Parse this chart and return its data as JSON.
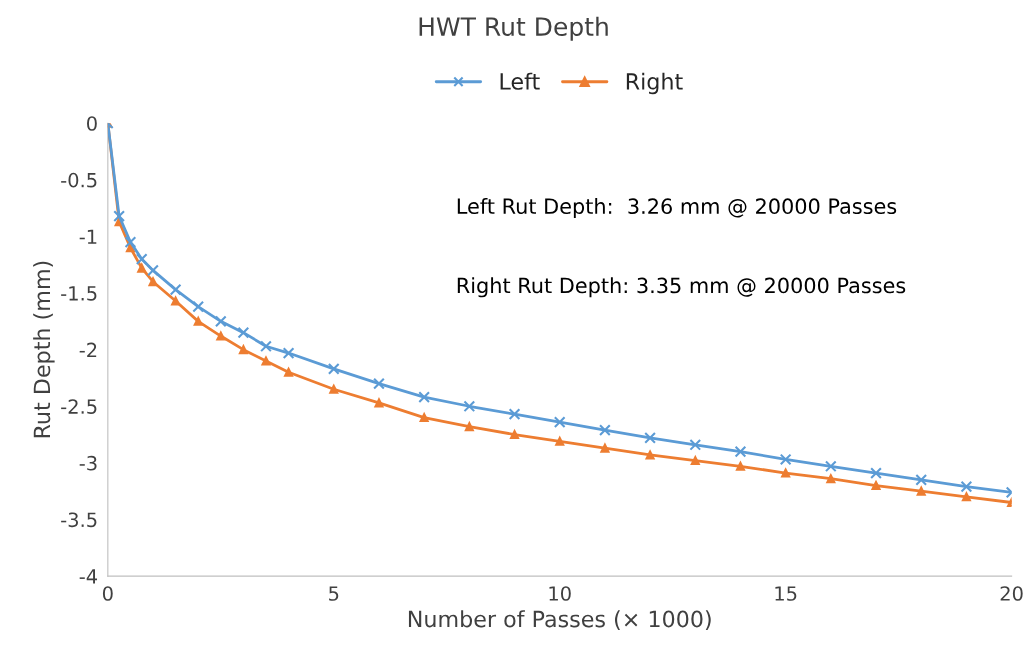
{
  "chart_data": {
    "type": "line",
    "title": "HWT Rut Depth",
    "xlabel": "Number of Passes (× 1000)",
    "ylabel": "Rut Depth (mm)",
    "xlim": [
      0,
      20
    ],
    "xticks": [
      0,
      5,
      10,
      15,
      20
    ],
    "ylim": [
      -4,
      0
    ],
    "yticks": [
      {
        "value": -4,
        "label": "-4"
      },
      {
        "value": -3.5,
        "label": "-3.5"
      },
      {
        "value": -3,
        "label": "-3"
      },
      {
        "value": -2.5,
        "label": "-2.5"
      },
      {
        "value": -2,
        "label": "-2"
      },
      {
        "value": -1.5,
        "label": "-1.5"
      },
      {
        "value": -1,
        "label": "-1"
      },
      {
        "value": -0.5,
        "label": "-0.5"
      },
      0
    ],
    "grid": false,
    "legend": "top",
    "series": [
      {
        "name": "Left",
        "color": "#5b9bd5",
        "marker": "cross",
        "x": [
          0,
          0.25,
          0.5,
          0.75,
          1,
          1.5,
          2,
          2.5,
          3,
          3.5,
          4,
          5,
          6,
          7,
          8,
          9,
          10,
          11,
          12,
          13,
          14,
          15,
          16,
          17,
          18,
          19,
          20
        ],
        "values": [
          0,
          -0.82,
          -1.05,
          -1.2,
          -1.3,
          -1.47,
          -1.62,
          -1.75,
          -1.85,
          -1.97,
          -2.03,
          -2.17,
          -2.3,
          -2.42,
          -2.5,
          -2.57,
          -2.64,
          -2.71,
          -2.78,
          -2.84,
          -2.9,
          -2.97,
          -3.03,
          -3.09,
          -3.15,
          -3.21,
          -3.26
        ]
      },
      {
        "name": "Right",
        "color": "#ed7d31",
        "marker": "triangle",
        "x": [
          0,
          0.25,
          0.5,
          0.75,
          1,
          1.5,
          2,
          2.5,
          3,
          3.5,
          4,
          5,
          6,
          7,
          8,
          9,
          10,
          11,
          12,
          13,
          14,
          15,
          16,
          17,
          18,
          19,
          20
        ],
        "values": [
          0,
          -0.87,
          -1.1,
          -1.28,
          -1.4,
          -1.57,
          -1.75,
          -1.88,
          -2.0,
          -2.1,
          -2.2,
          -2.35,
          -2.47,
          -2.6,
          -2.68,
          -2.75,
          -2.81,
          -2.87,
          -2.93,
          -2.98,
          -3.03,
          -3.09,
          -3.14,
          -3.2,
          -3.25,
          -3.3,
          -3.35
        ]
      }
    ],
    "annotations": [
      "Left Rut Depth:  3.26 mm @ 20000 Passes",
      "Right Rut Depth: 3.35 mm @ 20000 Passes"
    ]
  }
}
